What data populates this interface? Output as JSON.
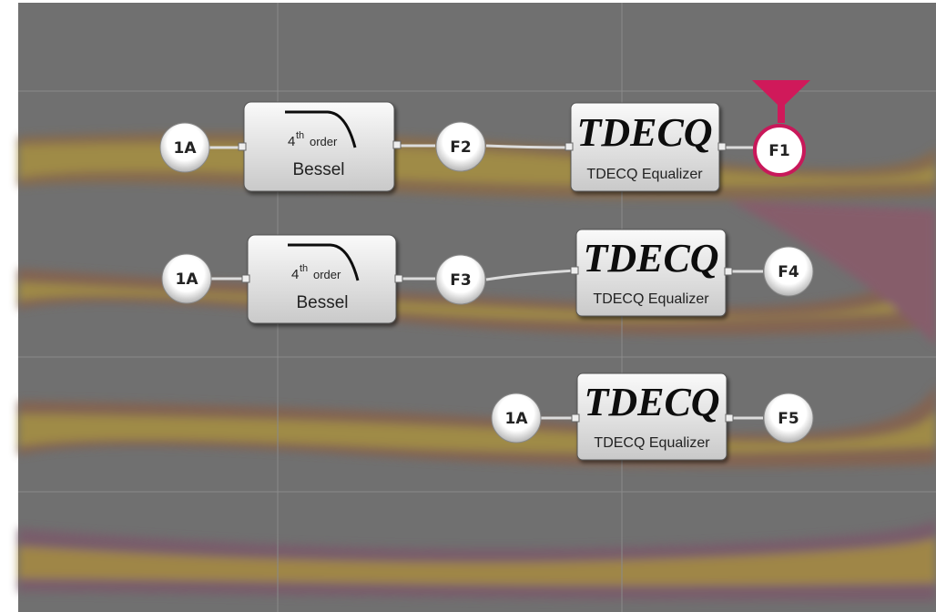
{
  "rows": [
    {
      "source": "1A",
      "filter": {
        "order": "4",
        "order_suffix": "th",
        "order_word": "order",
        "name": "Bessel"
      },
      "mid": "F2",
      "equalizer": {
        "logo": "TDECQ",
        "name": "TDECQ Equalizer"
      },
      "output": "F1"
    },
    {
      "source": "1A",
      "filter": {
        "order": "4",
        "order_suffix": "th",
        "order_word": "order",
        "name": "Bessel"
      },
      "mid": "F3",
      "equalizer": {
        "logo": "TDECQ",
        "name": "TDECQ Equalizer"
      },
      "output": "F4"
    },
    {
      "source": "1A",
      "equalizer": {
        "logo": "TDECQ",
        "name": "TDECQ Equalizer"
      },
      "output": "F5"
    }
  ]
}
